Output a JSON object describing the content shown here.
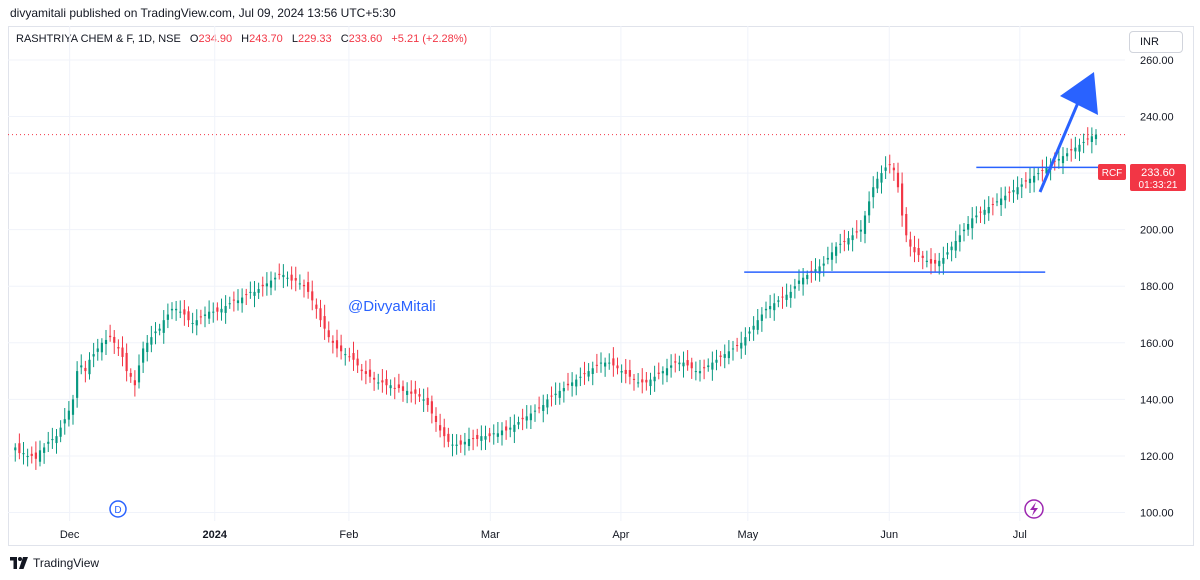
{
  "header": {
    "text": "divyamitali published on TradingView.com, Jul 09, 2024 13:56 UTC+5:30"
  },
  "legend": {
    "symbol": "RASHTRIYA CHEM & F, 1D, NSE",
    "open_label": "O",
    "open": "234.90",
    "high_label": "H",
    "high": "243.70",
    "low_label": "L",
    "low": "229.33",
    "close_label": "C",
    "close": "233.60",
    "change": "+5.21 (+2.28%)"
  },
  "currency": "INR",
  "price_tag": {
    "symbol": "RCF",
    "price": "233.60",
    "countdown": "01:33:21"
  },
  "watermark": "@DivyaMitali",
  "footer": {
    "brand": "TradingView"
  },
  "events": {
    "dividend_label": "D",
    "split_icon": "lightning-icon"
  },
  "colors": {
    "up": "#089981",
    "down": "#f23645",
    "line": "#2962ff",
    "earnings": "#ff9800"
  },
  "chart_data": {
    "type": "candlestick",
    "title": "RASHTRIYA CHEM & F, 1D, NSE",
    "ylim": [
      97,
      272
    ],
    "y_ticks": [
      100,
      120,
      140,
      160,
      180,
      200,
      220,
      240,
      260
    ],
    "y_tick_labels": [
      "100.00",
      "120.00",
      "140.00",
      "160.00",
      "180.00",
      "200.00",
      "220.00",
      "240.00",
      "260.00"
    ],
    "x_ticks": [
      {
        "label": "Dec",
        "index": 15
      },
      {
        "label": "2024",
        "index": 55
      },
      {
        "label": "Feb",
        "index": 92
      },
      {
        "label": "Mar",
        "index": 131
      },
      {
        "label": "Apr",
        "index": 167
      },
      {
        "label": "May",
        "index": 202
      },
      {
        "label": "Jun",
        "index": 241
      },
      {
        "label": "Jul",
        "index": 277
      }
    ],
    "x_range": [
      -2,
      306
    ],
    "close_series": [
      123,
      121,
      121,
      120,
      120,
      119,
      122,
      123,
      125,
      126,
      127,
      130,
      133,
      136,
      140,
      150,
      152,
      150,
      154,
      156,
      158,
      160,
      161,
      162,
      160,
      158,
      155,
      150,
      148,
      145,
      152,
      158,
      160,
      162,
      164,
      165,
      168,
      170,
      172,
      172,
      171,
      170,
      168,
      167,
      168,
      169,
      170,
      171,
      171,
      171,
      172,
      173,
      174,
      175,
      175,
      176,
      177,
      178,
      178,
      179,
      180,
      181,
      182,
      183,
      184,
      184,
      183,
      182,
      182,
      181,
      180,
      178,
      175,
      172,
      168,
      165,
      162,
      160,
      158,
      157,
      156,
      155,
      154,
      152,
      150,
      149,
      148,
      147,
      146,
      146,
      145,
      145,
      144,
      144,
      143,
      143,
      142,
      142,
      141,
      140,
      138,
      135,
      132,
      129,
      127,
      125,
      124,
      124,
      124,
      125,
      126,
      126,
      126,
      127,
      127,
      127,
      128,
      128,
      129,
      129,
      130,
      131,
      132,
      133,
      134,
      135,
      136,
      137,
      138,
      140,
      141,
      142,
      143,
      144,
      145,
      146,
      147,
      148,
      149,
      150,
      151,
      152,
      153,
      153,
      153,
      152,
      151,
      150,
      149,
      148,
      147,
      146,
      146,
      146,
      147,
      148,
      149,
      150,
      151,
      152,
      153,
      153,
      153,
      152,
      151,
      150,
      150,
      151,
      152,
      153,
      154,
      155,
      156,
      157,
      158,
      159,
      160,
      162,
      164,
      166,
      168,
      170,
      172,
      173,
      174,
      175,
      176,
      177,
      178,
      180,
      182,
      183,
      184,
      185,
      186,
      187,
      188,
      190,
      192,
      194,
      195,
      196,
      197,
      198,
      199,
      200,
      205,
      210,
      215,
      218,
      220,
      222,
      223,
      221,
      215,
      205,
      198,
      194,
      192,
      191,
      190,
      189,
      188,
      188,
      189,
      190,
      192,
      194,
      196,
      198,
      200,
      202,
      204,
      205,
      206,
      207,
      208,
      209,
      210,
      211,
      212,
      213,
      214,
      215,
      216,
      217,
      218,
      219,
      220,
      221,
      222,
      223,
      224,
      225,
      226,
      227,
      228,
      229,
      230,
      231,
      232,
      233,
      233.6
    ],
    "reference_lines": [
      {
        "y": 185,
        "x_from_index": 201,
        "x_to_index": 284
      },
      {
        "y": 222,
        "x_from_index": 265,
        "x_to_index": 300
      }
    ],
    "last_price": 233.6
  }
}
